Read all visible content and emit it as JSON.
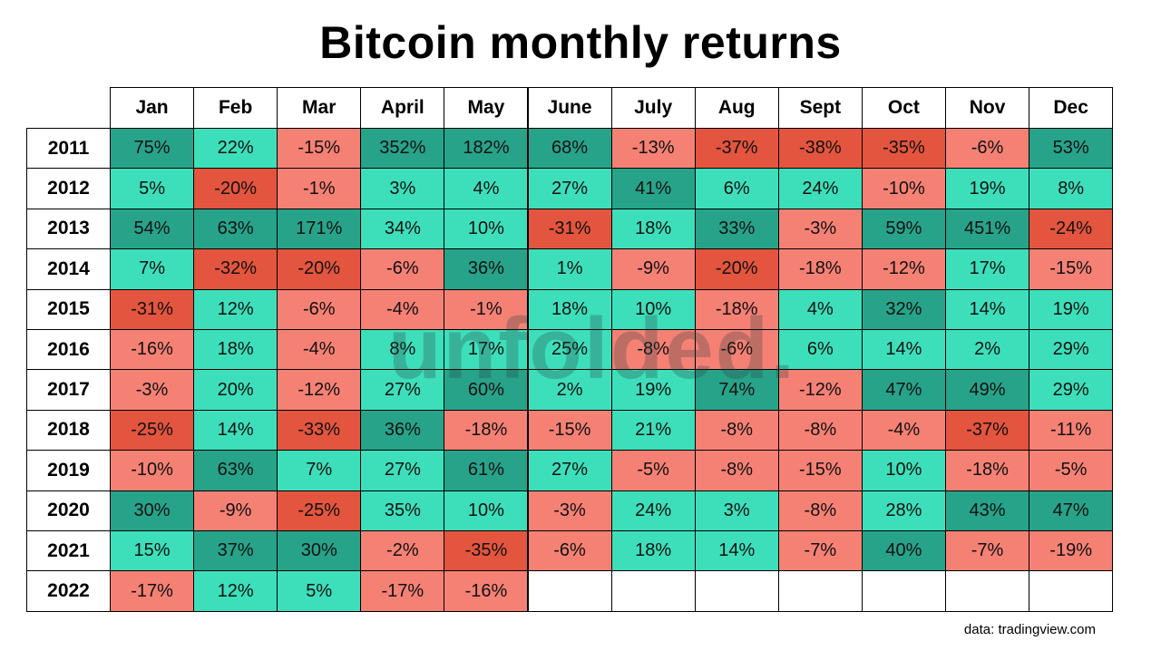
{
  "title": "Bitcoin monthly returns",
  "source": "data: tradingview.com",
  "watermark": "unfolded.",
  "colors": {
    "dark_green": "#27a38a",
    "green": "#3ddfbb",
    "light_red": "#f58175",
    "dark_red": "#e3553e",
    "empty": "#ffffff"
  },
  "chart_data": {
    "type": "heatmap",
    "columns": [
      "Jan",
      "Feb",
      "Mar",
      "April",
      "May",
      "June",
      "July",
      "Aug",
      "Sept",
      "Oct",
      "Nov",
      "Dec"
    ],
    "rows": [
      "2011",
      "2012",
      "2013",
      "2014",
      "2015",
      "2016",
      "2017",
      "2018",
      "2019",
      "2020",
      "2021",
      "2022"
    ],
    "values": [
      [
        "75%",
        "22%",
        "-15%",
        "352%",
        "182%",
        "68%",
        "-13%",
        "-37%",
        "-38%",
        "-35%",
        "-6%",
        "53%"
      ],
      [
        "5%",
        "-20%",
        "-1%",
        "3%",
        "4%",
        "27%",
        "41%",
        "6%",
        "24%",
        "-10%",
        "19%",
        "8%"
      ],
      [
        "54%",
        "63%",
        "171%",
        "34%",
        "10%",
        "-31%",
        "18%",
        "33%",
        "-3%",
        "59%",
        "451%",
        "-24%"
      ],
      [
        "7%",
        "-32%",
        "-20%",
        "-6%",
        "36%",
        "1%",
        "-9%",
        "-20%",
        "-18%",
        "-12%",
        "17%",
        "-15%"
      ],
      [
        "-31%",
        "12%",
        "-6%",
        "-4%",
        "-1%",
        "18%",
        "10%",
        "-18%",
        "4%",
        "32%",
        "14%",
        "19%"
      ],
      [
        "-16%",
        "18%",
        "-4%",
        "8%",
        "17%",
        "25%",
        "-8%",
        "-6%",
        "6%",
        "14%",
        "2%",
        "29%"
      ],
      [
        "-3%",
        "20%",
        "-12%",
        "27%",
        "60%",
        "2%",
        "19%",
        "74%",
        "-12%",
        "47%",
        "49%",
        "29%"
      ],
      [
        "-25%",
        "14%",
        "-33%",
        "36%",
        "-18%",
        "-15%",
        "21%",
        "-8%",
        "-8%",
        "-4%",
        "-37%",
        "-11%"
      ],
      [
        "-10%",
        "63%",
        "7%",
        "27%",
        "61%",
        "27%",
        "-5%",
        "-8%",
        "-15%",
        "10%",
        "-18%",
        "-5%"
      ],
      [
        "30%",
        "-9%",
        "-25%",
        "35%",
        "10%",
        "-3%",
        "24%",
        "3%",
        "-8%",
        "28%",
        "43%",
        "47%"
      ],
      [
        "15%",
        "37%",
        "30%",
        "-2%",
        "-35%",
        "-6%",
        "18%",
        "14%",
        "-7%",
        "40%",
        "-7%",
        "-19%"
      ],
      [
        "-17%",
        "12%",
        "5%",
        "-17%",
        "-16%",
        "",
        "",
        "",
        "",
        "",
        "",
        ""
      ]
    ],
    "color_classes": [
      [
        "dark_green",
        "green",
        "light_red",
        "dark_green",
        "dark_green",
        "dark_green",
        "light_red",
        "dark_red",
        "dark_red",
        "dark_red",
        "light_red",
        "dark_green"
      ],
      [
        "green",
        "dark_red",
        "light_red",
        "green",
        "green",
        "green",
        "dark_green",
        "green",
        "green",
        "light_red",
        "green",
        "green"
      ],
      [
        "dark_green",
        "dark_green",
        "dark_green",
        "green",
        "green",
        "dark_red",
        "green",
        "dark_green",
        "light_red",
        "dark_green",
        "dark_green",
        "dark_red"
      ],
      [
        "green",
        "dark_red",
        "dark_red",
        "light_red",
        "dark_green",
        "green",
        "light_red",
        "dark_red",
        "light_red",
        "light_red",
        "green",
        "light_red"
      ],
      [
        "dark_red",
        "green",
        "light_red",
        "light_red",
        "light_red",
        "green",
        "green",
        "light_red",
        "green",
        "dark_green",
        "green",
        "green"
      ],
      [
        "light_red",
        "green",
        "light_red",
        "green",
        "green",
        "green",
        "light_red",
        "light_red",
        "green",
        "green",
        "green",
        "green"
      ],
      [
        "light_red",
        "green",
        "light_red",
        "green",
        "dark_green",
        "green",
        "green",
        "dark_green",
        "light_red",
        "dark_green",
        "dark_green",
        "green"
      ],
      [
        "dark_red",
        "green",
        "dark_red",
        "dark_green",
        "light_red",
        "light_red",
        "green",
        "light_red",
        "light_red",
        "light_red",
        "dark_red",
        "light_red"
      ],
      [
        "light_red",
        "dark_green",
        "green",
        "green",
        "dark_green",
        "green",
        "light_red",
        "light_red",
        "light_red",
        "green",
        "light_red",
        "light_red"
      ],
      [
        "dark_green",
        "light_red",
        "dark_red",
        "green",
        "green",
        "light_red",
        "green",
        "green",
        "light_red",
        "green",
        "dark_green",
        "dark_green"
      ],
      [
        "green",
        "dark_green",
        "dark_green",
        "light_red",
        "dark_red",
        "light_red",
        "green",
        "green",
        "light_red",
        "dark_green",
        "light_red",
        "light_red"
      ],
      [
        "light_red",
        "green",
        "green",
        "light_red",
        "light_red",
        "empty",
        "empty",
        "empty",
        "empty",
        "empty",
        "empty",
        "empty"
      ]
    ]
  }
}
